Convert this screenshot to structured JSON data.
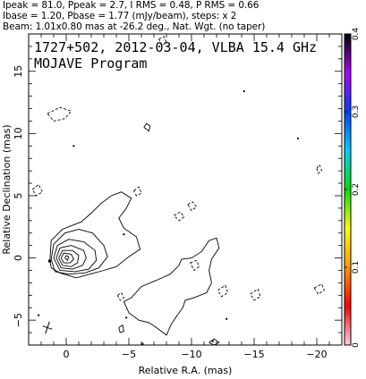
{
  "header": {
    "line1": "Ipeak = 81.0, Ppeak = 2.7, I RMS = 0.48, P RMS = 0.66",
    "line2": "Ibase = 1.20, Pbase = 1.77 (mJy/beam), steps: x 2",
    "line3": "Beam: 1.01x0.80 mas at -26.2 deg., Nat. Wgt. (no taper)"
  },
  "chart_data": {
    "type": "contour",
    "title": "1727+502, 2012-03-04, VLBA 15.4 GHz",
    "subtitle": "MOJAVE Program",
    "xlabel": "Relative R.A. (mas)",
    "ylabel": "Relative Declination (mas)",
    "xlim": [
      3.0,
      -22.0
    ],
    "ylim": [
      -7.0,
      18.0
    ],
    "x_ticks": [
      0,
      -5,
      -10,
      -15,
      -20
    ],
    "x_tick_labels": [
      "0",
      "−5",
      "−10",
      "−15",
      "−20"
    ],
    "y_ticks": [
      -5,
      0,
      5,
      10,
      15
    ],
    "y_tick_labels": [
      "−5",
      "0",
      "5",
      "10",
      "15"
    ],
    "peak_intensity_mJy_per_beam": 81.0,
    "base_contour_mJy_per_beam": 1.2,
    "contour_step_factor": 2,
    "core_position": [
      0.0,
      0.0
    ],
    "beam": {
      "major_mas": 1.01,
      "minor_mas": 0.8,
      "pa_deg": -26.2
    },
    "colorbar": {
      "range": [
        0,
        0.4
      ],
      "ticks": [
        0,
        0.1,
        0.2,
        0.3,
        0.4
      ],
      "tick_labels": [
        "0",
        "0.1",
        "0.2",
        "0.3",
        "0.4"
      ],
      "colors": [
        "#ffd0e8",
        "#ff0000",
        "#ff9900",
        "#ffff00",
        "#00e000",
        "#00d0ff",
        "#0040ff",
        "#b000ff",
        "#000000"
      ]
    },
    "contours": [
      {
        "name": "core-1",
        "level": 1,
        "dashed": false,
        "points": [
          [
            0.1,
            0
          ],
          [
            0,
            0.2
          ],
          [
            -0.2,
            0.1
          ],
          [
            -0.1,
            -0.2
          ],
          [
            0.1,
            0
          ]
        ]
      },
      {
        "name": "core-2",
        "level": 2,
        "dashed": false,
        "points": [
          [
            0.4,
            0
          ],
          [
            0.2,
            0.4
          ],
          [
            -0.4,
            0.3
          ],
          [
            -0.6,
            -0.1
          ],
          [
            -0.3,
            -0.4
          ],
          [
            0.2,
            -0.4
          ],
          [
            0.4,
            0
          ]
        ]
      },
      {
        "name": "core-3",
        "level": 3,
        "dashed": false,
        "points": [
          [
            0.6,
            0
          ],
          [
            0.3,
            0.6
          ],
          [
            -0.5,
            0.6
          ],
          [
            -1.0,
            0.2
          ],
          [
            -0.9,
            -0.4
          ],
          [
            -0.4,
            -0.7
          ],
          [
            0.3,
            -0.6
          ],
          [
            0.6,
            0
          ]
        ]
      },
      {
        "name": "core-4",
        "level": 4,
        "dashed": false,
        "points": [
          [
            0.8,
            0
          ],
          [
            0.5,
            0.8
          ],
          [
            -0.4,
            1.0
          ],
          [
            -1.4,
            0.6
          ],
          [
            -1.6,
            0
          ],
          [
            -1.3,
            -0.6
          ],
          [
            -0.5,
            -0.9
          ],
          [
            0.4,
            -0.8
          ],
          [
            0.8,
            0
          ]
        ]
      },
      {
        "name": "core-5",
        "level": 5,
        "dashed": false,
        "points": [
          [
            1.0,
            0
          ],
          [
            0.7,
            1.0
          ],
          [
            -0.2,
            1.5
          ],
          [
            -1.4,
            1.3
          ],
          [
            -2.3,
            0.6
          ],
          [
            -2.4,
            -0.2
          ],
          [
            -1.8,
            -0.9
          ],
          [
            -0.7,
            -1.1
          ],
          [
            0.5,
            -1.0
          ],
          [
            1.0,
            0
          ]
        ]
      },
      {
        "name": "core-6",
        "level": 6,
        "dashed": false,
        "points": [
          [
            1.2,
            -0.1
          ],
          [
            1.0,
            1.1
          ],
          [
            0.1,
            2.0
          ],
          [
            -1.0,
            2.3
          ],
          [
            -2.1,
            2.0
          ],
          [
            -3.0,
            1.0
          ],
          [
            -3.3,
            0.1
          ],
          [
            -2.6,
            -0.8
          ],
          [
            -1.5,
            -1.2
          ],
          [
            -0.2,
            -1.3
          ],
          [
            0.9,
            -1.1
          ],
          [
            1.2,
            -0.1
          ]
        ]
      },
      {
        "name": "jet-outer",
        "level": 7,
        "dashed": false,
        "points": [
          [
            1.3,
            -0.2
          ],
          [
            1.2,
            1.4
          ],
          [
            0.3,
            2.3
          ],
          [
            -1.2,
            2.9
          ],
          [
            -2.0,
            3.6
          ],
          [
            -2.8,
            4.4
          ],
          [
            -3.6,
            5.0
          ],
          [
            -4.4,
            5.3
          ],
          [
            -5.2,
            4.8
          ],
          [
            -4.8,
            4.0
          ],
          [
            -4.2,
            3.2
          ],
          [
            -4.6,
            2.4
          ],
          [
            -5.6,
            1.7
          ],
          [
            -5.9,
            0.7
          ],
          [
            -5.0,
            0.1
          ],
          [
            -4.0,
            -0.7
          ],
          [
            -3.0,
            -1.0
          ],
          [
            -1.9,
            -1.3
          ],
          [
            -0.8,
            -1.6
          ],
          [
            0.5,
            -1.2
          ],
          [
            1.2,
            -0.8
          ],
          [
            1.3,
            -0.2
          ]
        ]
      },
      {
        "name": "jet-extended",
        "level": 1,
        "dashed": false,
        "points": [
          [
            -5.2,
            -3.2
          ],
          [
            -6.0,
            -2.3
          ],
          [
            -7.2,
            -1.8
          ],
          [
            -8.3,
            -1.3
          ],
          [
            -9.0,
            -0.6
          ],
          [
            -9.2,
            -0.1
          ],
          [
            -10.0,
            0.0
          ],
          [
            -10.8,
            0.5
          ],
          [
            -11.4,
            1.4
          ],
          [
            -12.0,
            1.6
          ],
          [
            -12.2,
            0.8
          ],
          [
            -11.6,
            -0.1
          ],
          [
            -11.4,
            -1.0
          ],
          [
            -11.6,
            -2.0
          ],
          [
            -11.2,
            -2.8
          ],
          [
            -10.2,
            -3.2
          ],
          [
            -9.5,
            -3.4
          ],
          [
            -9.3,
            -4.0
          ],
          [
            -8.8,
            -4.7
          ],
          [
            -8.4,
            -5.3
          ],
          [
            -8.0,
            -6.2
          ],
          [
            -7.2,
            -5.6
          ],
          [
            -6.6,
            -5.2
          ],
          [
            -5.8,
            -5.0
          ],
          [
            -5.0,
            -4.4
          ],
          [
            -4.6,
            -3.5
          ],
          [
            -5.2,
            -3.2
          ]
        ]
      },
      {
        "name": "blob-a",
        "level": 1,
        "dashed": false,
        "points": [
          [
            -6.2,
            10.5
          ],
          [
            -6.4,
            10.8
          ],
          [
            -6.7,
            10.6
          ],
          [
            -6.6,
            10.2
          ],
          [
            -6.2,
            10.5
          ]
        ]
      },
      {
        "name": "blob-b",
        "level": 1,
        "dashed": false,
        "points": [
          [
            -4.2,
            -5.6
          ],
          [
            -4.5,
            -5.4
          ],
          [
            -4.6,
            -5.9
          ],
          [
            -4.3,
            -6.0
          ],
          [
            -4.2,
            -5.6
          ]
        ]
      },
      {
        "name": "blob-c",
        "level": 1,
        "dashed": false,
        "points": [
          [
            -11.4,
            -6.8
          ],
          [
            -11.8,
            -6.5
          ],
          [
            -12.2,
            -6.8
          ],
          [
            -11.8,
            -7.0
          ],
          [
            -11.4,
            -6.8
          ]
        ]
      },
      {
        "name": "neg-1",
        "level": -1,
        "dashed": true,
        "points": [
          [
            1.5,
            11.6
          ],
          [
            0.5,
            12.1
          ],
          [
            -0.4,
            11.8
          ],
          [
            0.1,
            11.2
          ],
          [
            1.0,
            11.0
          ],
          [
            1.5,
            11.6
          ]
        ]
      },
      {
        "name": "neg-2",
        "level": -1,
        "dashed": true,
        "points": [
          [
            2.7,
            5.5
          ],
          [
            2.2,
            5.9
          ],
          [
            1.9,
            5.3
          ],
          [
            2.4,
            5.0
          ],
          [
            2.7,
            5.5
          ]
        ]
      },
      {
        "name": "neg-3",
        "level": -1,
        "dashed": true,
        "points": [
          [
            -5.4,
            5.4
          ],
          [
            -5.8,
            5.7
          ],
          [
            -6.0,
            5.2
          ],
          [
            -5.6,
            5.0
          ],
          [
            -5.4,
            5.4
          ]
        ]
      },
      {
        "name": "neg-4",
        "level": -1,
        "dashed": true,
        "points": [
          [
            -8.6,
            3.4
          ],
          [
            -9.1,
            3.7
          ],
          [
            -9.4,
            3.3
          ],
          [
            -9.0,
            3.0
          ],
          [
            -8.6,
            3.4
          ]
        ]
      },
      {
        "name": "neg-5",
        "level": -1,
        "dashed": true,
        "points": [
          [
            -9.9,
            -0.4
          ],
          [
            -10.4,
            -0.2
          ],
          [
            -10.6,
            -0.7
          ],
          [
            -10.2,
            -1.0
          ],
          [
            -9.9,
            -0.4
          ]
        ]
      },
      {
        "name": "neg-6",
        "level": -1,
        "dashed": true,
        "points": [
          [
            -12.1,
            -2.6
          ],
          [
            -12.7,
            -2.2
          ],
          [
            -12.9,
            -2.8
          ],
          [
            -12.4,
            -3.1
          ],
          [
            -12.1,
            -2.6
          ]
        ]
      },
      {
        "name": "neg-7",
        "level": -1,
        "dashed": true,
        "points": [
          [
            -14.7,
            -2.9
          ],
          [
            -15.3,
            -2.5
          ],
          [
            -15.5,
            -3.1
          ],
          [
            -15.0,
            -3.4
          ],
          [
            -14.7,
            -2.9
          ]
        ]
      },
      {
        "name": "neg-8",
        "level": -1,
        "dashed": true,
        "points": [
          [
            -19.8,
            -2.4
          ],
          [
            -20.4,
            -2.1
          ],
          [
            -20.6,
            -2.6
          ],
          [
            -20.1,
            -2.9
          ],
          [
            -19.8,
            -2.4
          ]
        ]
      },
      {
        "name": "neg-9",
        "level": -1,
        "dashed": true,
        "points": [
          [
            -20.0,
            7.2
          ],
          [
            -20.2,
            7.5
          ],
          [
            -20.4,
            7.0
          ],
          [
            -20.1,
            6.8
          ],
          [
            -20.0,
            7.2
          ]
        ]
      },
      {
        "name": "neg-10",
        "level": -1,
        "dashed": true,
        "points": [
          [
            -4.1,
            -3.0
          ],
          [
            -4.4,
            -2.8
          ],
          [
            -4.6,
            -3.2
          ],
          [
            -4.3,
            -3.4
          ],
          [
            -4.1,
            -3.0
          ]
        ]
      },
      {
        "name": "neg-11",
        "level": -1,
        "dashed": true,
        "points": [
          [
            -9.7,
            4.3
          ],
          [
            -10.1,
            4.5
          ],
          [
            -10.4,
            4.1
          ],
          [
            -10.0,
            3.8
          ],
          [
            -9.7,
            4.3
          ]
        ]
      },
      {
        "name": "neg-12",
        "level": -1,
        "dashed": true,
        "points": [
          [
            -7.4,
            17.6
          ],
          [
            -7.8,
            17.8
          ],
          [
            -8.0,
            17.3
          ],
          [
            -7.6,
            17.1
          ],
          [
            -7.4,
            17.6
          ]
        ]
      }
    ],
    "polarization_dots": [
      [
        -14.2,
        13.4
      ],
      [
        -18.5,
        9.6
      ],
      [
        -0.6,
        9.0
      ],
      [
        2.2,
        -4.6
      ],
      [
        -4.6,
        1.9
      ],
      [
        -12.8,
        -4.9
      ],
      [
        -6.1,
        -6.9
      ],
      [
        -11.7,
        -6.7
      ],
      [
        -4.8,
        -4.8
      ]
    ]
  }
}
